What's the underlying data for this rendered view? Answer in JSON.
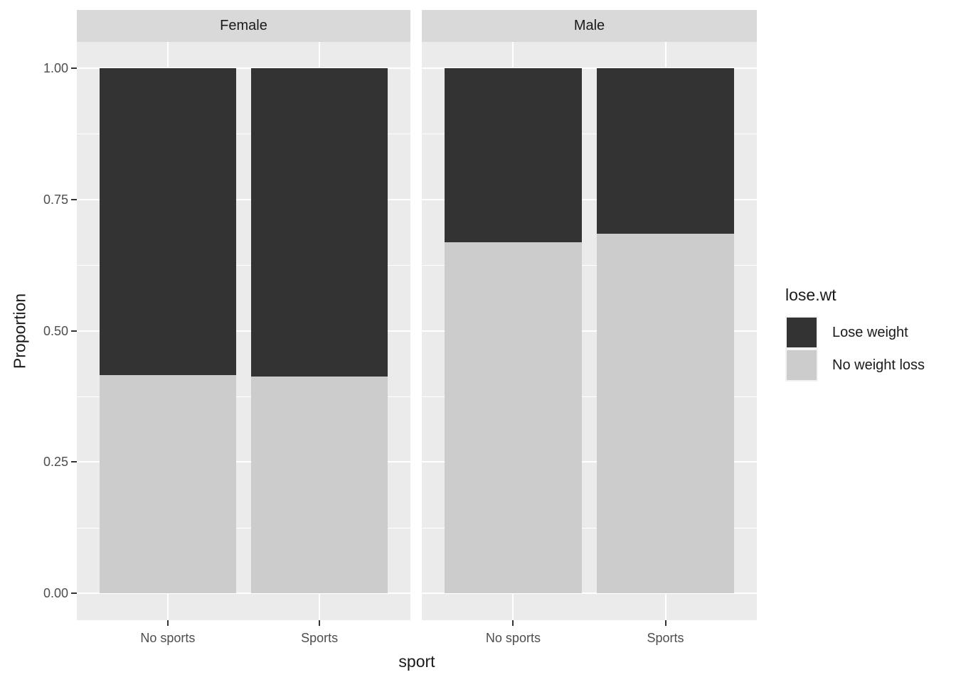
{
  "chart_data": {
    "type": "bar",
    "variant": "stacked-proportion-faceted",
    "title": "",
    "xlabel": "sport",
    "ylabel": "Proportion",
    "ylim": [
      0,
      1
    ],
    "y_major_ticks": [
      1.0,
      0.75,
      0.5,
      0.25,
      0.0
    ],
    "y_tick_labels": [
      "1.00",
      "0.75",
      "0.50",
      "0.25",
      "0.00"
    ],
    "y_minor_ticks": [
      0.875,
      0.625,
      0.375,
      0.125
    ],
    "categories": [
      "No sports",
      "Sports"
    ],
    "facets": [
      {
        "label": "Female",
        "series": {
          "Lose weight": [
            0.585,
            0.587
          ],
          "No weight loss": [
            0.415,
            0.413
          ]
        }
      },
      {
        "label": "Male",
        "series": {
          "Lose weight": [
            0.332,
            0.315
          ],
          "No weight loss": [
            0.668,
            0.685
          ]
        }
      }
    ],
    "stack_order_bottom_to_top": [
      "No weight loss",
      "Lose weight"
    ],
    "colors": {
      "Lose weight": "#333333",
      "No weight loss": "#cccccc"
    },
    "legend": {
      "title": "lose.wt",
      "position": "right",
      "entries": [
        {
          "label": "Lose weight",
          "color": "#333333"
        },
        {
          "label": "No weight loss",
          "color": "#cccccc"
        }
      ]
    },
    "grid": "on"
  },
  "theme": {
    "background": "#ffffff",
    "panel_bg": "#ebebeb",
    "strip_bg": "#d9d9d9",
    "grid_color": "#ffffff",
    "tick_label_color": "#4d4d4d",
    "text_color": "#1a1a1a",
    "tick_mark_color": "#333333"
  }
}
